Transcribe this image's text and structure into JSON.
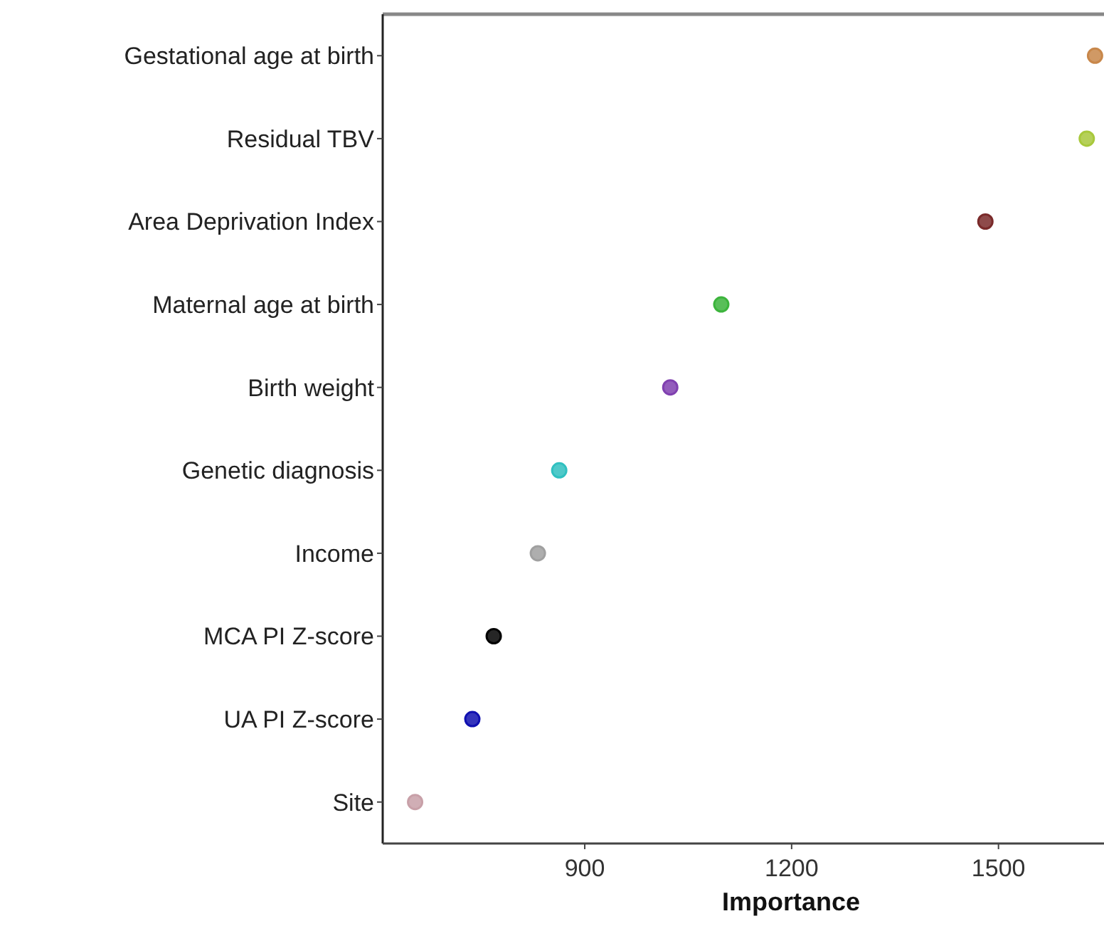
{
  "chart_data": {
    "type": "scatter",
    "orientation": "horizontal",
    "xlabel": "Importance",
    "categories": [
      "Gestational age at birth",
      "Residual TBV",
      "Area Deprivation Index",
      "Maternal age at birth",
      "Birth weight",
      "Genetic diagnosis",
      "Income",
      "MCA PI Z-score",
      "UA PI Z-score",
      "Site"
    ],
    "values": [
      1640,
      1628,
      1481,
      1098,
      1024,
      863,
      832,
      768,
      737,
      654
    ],
    "colors": [
      "#c8874a",
      "#a8c83c",
      "#7a2a2a",
      "#3cb43c",
      "#8040b0",
      "#30c0c0",
      "#a0a0a0",
      "#000000",
      "#1010b0",
      "#c8a0a8"
    ],
    "xlim": [
      607,
      1653
    ],
    "xticks": [
      900,
      1200,
      1500
    ],
    "marker": "circle",
    "grid": false
  }
}
